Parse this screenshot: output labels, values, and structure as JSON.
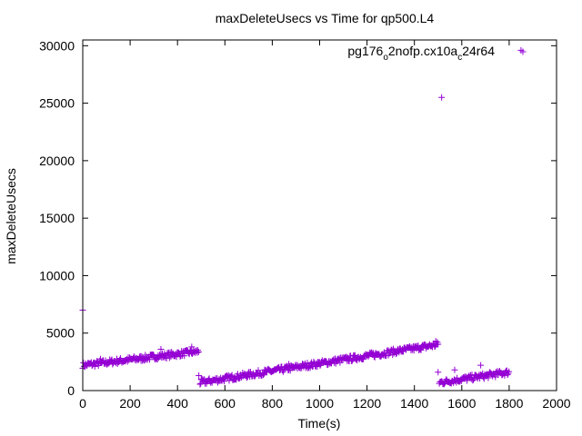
{
  "chart_data": {
    "type": "scatter",
    "title": "maxDeleteUsecs vs Time for qp500.L4",
    "xlabel": "Time(s)",
    "ylabel": "maxDeleteUsecs",
    "xlim": [
      0,
      2000
    ],
    "ylim": [
      0,
      30500
    ],
    "x_ticks": [
      0,
      200,
      400,
      600,
      800,
      1000,
      1200,
      1400,
      1600,
      1800,
      2000
    ],
    "y_ticks": [
      0,
      5000,
      10000,
      15000,
      20000,
      25000,
      30000
    ],
    "x_tick_labels": [
      "0",
      "200",
      "400",
      "600",
      "800",
      "1000",
      "1200",
      "1400",
      "1600",
      "1800",
      "2000"
    ],
    "y_tick_labels": [
      "0",
      "5000",
      "10000",
      "15000",
      "20000",
      "25000",
      "30000"
    ],
    "grid": false,
    "legend_position": "top-right",
    "marker_color": "#9400d3",
    "series": [
      {
        "name_parts": [
          "pg176",
          "o",
          "2nofp.cx10a",
          "c",
          "24r64"
        ],
        "segments": [
          {
            "x_start": 0,
            "x_end": 490,
            "y_start": 2200,
            "y_end": 3400,
            "step": 3
          },
          {
            "x_start": 495,
            "x_end": 1500,
            "y_start": 700,
            "y_end": 4000,
            "step": 3
          },
          {
            "x_start": 1505,
            "x_end": 1800,
            "y_start": 700,
            "y_end": 1600,
            "step": 3
          }
        ],
        "points": [
          {
            "x": 0,
            "y": 7000
          },
          {
            "x": 75,
            "y": 2750
          },
          {
            "x": 330,
            "y": 3600
          },
          {
            "x": 460,
            "y": 3800
          },
          {
            "x": 490,
            "y": 1300
          },
          {
            "x": 500,
            "y": 1000
          },
          {
            "x": 870,
            "y": 2300
          },
          {
            "x": 1220,
            "y": 3300
          },
          {
            "x": 1350,
            "y": 3600
          },
          {
            "x": 1490,
            "y": 4300
          },
          {
            "x": 1500,
            "y": 1600
          },
          {
            "x": 1515,
            "y": 25500
          },
          {
            "x": 1570,
            "y": 1800
          },
          {
            "x": 1680,
            "y": 2200
          },
          {
            "x": 1850,
            "y": 29600
          }
        ]
      }
    ]
  }
}
